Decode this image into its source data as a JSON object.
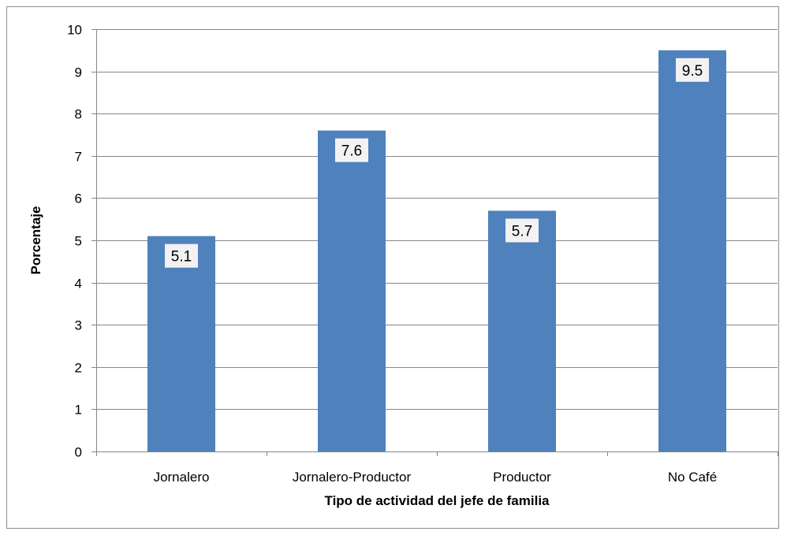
{
  "chart_data": {
    "type": "bar",
    "title": "",
    "categories": [
      "Jornalero",
      "Jornalero-Productor",
      "Productor",
      "No Café"
    ],
    "values": [
      5.1,
      7.6,
      5.7,
      9.5
    ],
    "data_labels": [
      "5.1",
      "7.6",
      "5.7",
      "9.5"
    ],
    "xlabel": "Tipo de actividad del jefe de familia",
    "ylabel": "Porcentaje",
    "ylim": [
      0,
      10
    ],
    "yticks": [
      0,
      1,
      2,
      3,
      4,
      5,
      6,
      7,
      8,
      9,
      10
    ],
    "ytick_labels": [
      "0",
      "1",
      "2",
      "3",
      "4",
      "5",
      "6",
      "7",
      "8",
      "9",
      "10"
    ],
    "grid": true,
    "legend": "none",
    "colors": {
      "bar": "#4f81bd",
      "grid": "#868686",
      "axis": "#868686",
      "label_box": "#f2f2f2"
    }
  }
}
